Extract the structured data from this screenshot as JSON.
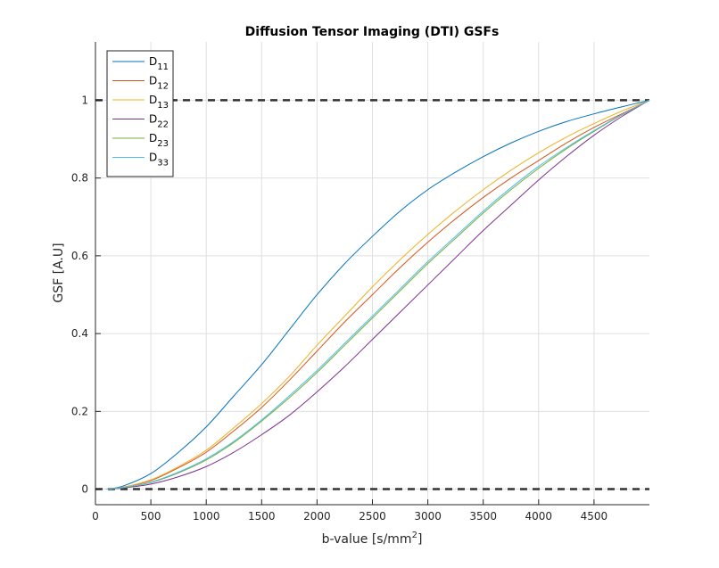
{
  "chart_data": {
    "type": "line",
    "title": "Diffusion Tensor Imaging (DTI) GSFs",
    "xlabel_main": "b-value [s/mm",
    "xlabel_sup": "2",
    "xlabel_close": "]",
    "ylabel": "GSF [A.U]",
    "xlim": [
      0,
      5000
    ],
    "ylim": [
      -0.04,
      1.15
    ],
    "xticks": [
      0,
      500,
      1000,
      1500,
      2000,
      2500,
      3000,
      3500,
      4000,
      4500
    ],
    "yticks": [
      0,
      0.2,
      0.4,
      0.6,
      0.8,
      1
    ],
    "ytick_labels": [
      "0",
      "0.2",
      "0.4",
      "0.6",
      "0.8",
      "1"
    ],
    "grid": true,
    "legend_position": "top-left",
    "reference_lines": [
      0,
      1
    ],
    "x": [
      100,
      250,
      500,
      750,
      1000,
      1250,
      1500,
      1750,
      2000,
      2250,
      2500,
      2750,
      3000,
      3250,
      3500,
      3750,
      4000,
      4250,
      4500,
      4750,
      5000
    ],
    "series": [
      {
        "name_base": "D",
        "name_sub": "11",
        "color": "#0072BD",
        "values": [
          0.0,
          0.008,
          0.04,
          0.095,
          0.16,
          0.24,
          0.32,
          0.41,
          0.5,
          0.58,
          0.65,
          0.715,
          0.77,
          0.815,
          0.855,
          0.89,
          0.92,
          0.945,
          0.965,
          0.983,
          1.0
        ]
      },
      {
        "name_base": "D",
        "name_sub": "12",
        "color": "#D95319",
        "values": [
          0.0,
          0.005,
          0.022,
          0.055,
          0.095,
          0.15,
          0.21,
          0.28,
          0.355,
          0.43,
          0.5,
          0.57,
          0.635,
          0.695,
          0.75,
          0.8,
          0.845,
          0.89,
          0.93,
          0.965,
          1.0
        ]
      },
      {
        "name_base": "D",
        "name_sub": "13",
        "color": "#EDB120",
        "values": [
          0.0,
          0.005,
          0.024,
          0.058,
          0.1,
          0.158,
          0.22,
          0.29,
          0.37,
          0.445,
          0.52,
          0.59,
          0.655,
          0.715,
          0.77,
          0.82,
          0.865,
          0.905,
          0.94,
          0.972,
          1.0
        ]
      },
      {
        "name_base": "D",
        "name_sub": "22",
        "color": "#7E2F8E",
        "values": [
          0.0,
          0.003,
          0.013,
          0.032,
          0.058,
          0.095,
          0.14,
          0.19,
          0.25,
          0.315,
          0.385,
          0.455,
          0.525,
          0.595,
          0.665,
          0.73,
          0.795,
          0.855,
          0.91,
          0.958,
          1.0
        ]
      },
      {
        "name_base": "D",
        "name_sub": "23",
        "color": "#77AC30",
        "values": [
          0.0,
          0.004,
          0.017,
          0.042,
          0.075,
          0.12,
          0.175,
          0.235,
          0.3,
          0.37,
          0.44,
          0.51,
          0.58,
          0.645,
          0.71,
          0.77,
          0.825,
          0.875,
          0.92,
          0.962,
          1.0
        ]
      },
      {
        "name_base": "D",
        "name_sub": "33",
        "color": "#4DBEEE",
        "values": [
          0.0,
          0.004,
          0.018,
          0.044,
          0.078,
          0.123,
          0.178,
          0.24,
          0.305,
          0.375,
          0.445,
          0.515,
          0.585,
          0.65,
          0.715,
          0.775,
          0.83,
          0.878,
          0.922,
          0.963,
          1.0
        ]
      }
    ]
  }
}
